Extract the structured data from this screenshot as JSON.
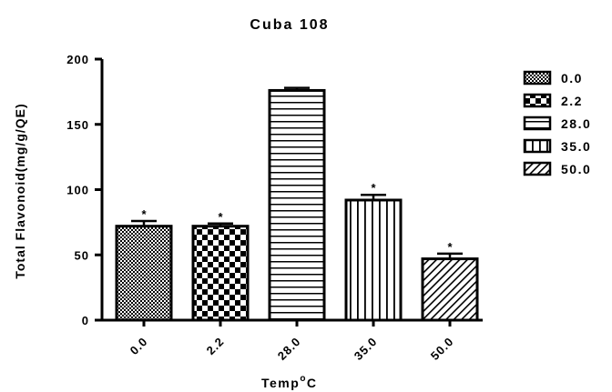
{
  "chart_data": {
    "type": "bar",
    "title": "Cuba 108",
    "xlabel_main": "Temp",
    "xlabel_sup": "o",
    "xlabel_tail": "C",
    "ylabel": "Total Flavonoid(mg/g/QE)",
    "categories": [
      "0.0",
      "2.2",
      "28.0",
      "35.0",
      "50.0"
    ],
    "values": [
      72,
      72,
      176,
      92,
      47
    ],
    "errors": [
      4,
      2,
      2,
      4,
      4
    ],
    "significance": [
      "*",
      "*",
      "",
      "*",
      "*"
    ],
    "ylim": [
      0,
      200
    ],
    "yticks": [
      0,
      50,
      100,
      150,
      200
    ],
    "patterns": [
      "fine-checker",
      "coarse-checker",
      "horizontal-lines",
      "vertical-lines",
      "diagonal-lines"
    ],
    "legend": [
      "0.0",
      "2.2",
      "28.0",
      "35.0",
      "50.0"
    ],
    "legend_position": "right",
    "grid": false
  }
}
